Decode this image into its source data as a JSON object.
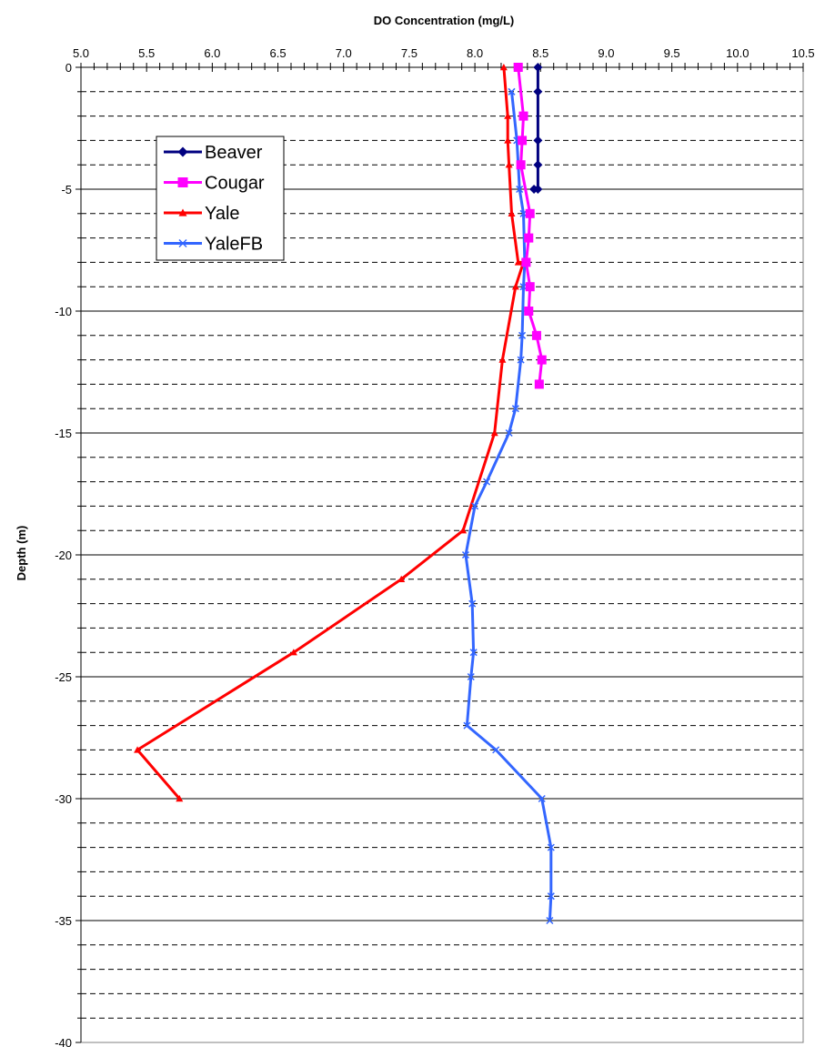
{
  "chart_data": {
    "type": "line",
    "title": "",
    "xlabel": "DO Concentration (mg/L)",
    "ylabel": "Depth (m)",
    "xlim": [
      5.0,
      10.5
    ],
    "ylim": [
      -40,
      0
    ],
    "x_ticks": [
      "5.0",
      "5.5",
      "6.0",
      "6.5",
      "7.0",
      "7.5",
      "8.0",
      "8.5",
      "9.0",
      "9.5",
      "10.0",
      "10.5"
    ],
    "y_ticks": [
      "0",
      "-5",
      "-10",
      "-15",
      "-20",
      "-25",
      "-30",
      "-35",
      "-40"
    ],
    "x_axis_position": "top",
    "grid": "horizontal (solid every 5 m, dashed every 1 m)",
    "legend_position": "upper-left",
    "series": [
      {
        "name": "Beaver",
        "color": "#000080",
        "marker": "diamond",
        "x": [
          8.48,
          8.48,
          8.48,
          8.48,
          8.48,
          8.45
        ],
        "y": [
          0,
          -1,
          -3,
          -4,
          -5,
          -5
        ]
      },
      {
        "name": "Cougar",
        "color": "#ff00ff",
        "marker": "square",
        "x": [
          8.33,
          8.37,
          8.36,
          8.35,
          8.42,
          8.41,
          8.39,
          8.42,
          8.41,
          8.47,
          8.51,
          8.49
        ],
        "y": [
          0,
          -2,
          -3,
          -4,
          -6,
          -7,
          -8,
          -9,
          -10,
          -11,
          -12,
          -13
        ]
      },
      {
        "name": "Yale",
        "color": "#ff0000",
        "marker": "triangle",
        "x": [
          8.22,
          8.25,
          8.25,
          8.26,
          8.28,
          8.33,
          8.37,
          8.31,
          8.21,
          8.15,
          7.91,
          7.44,
          6.62,
          5.43,
          5.75
        ],
        "y": [
          0,
          -2,
          -3,
          -4,
          -6,
          -8,
          -8,
          -9,
          -12,
          -15,
          -19,
          -21,
          -24,
          -28,
          -30
        ]
      },
      {
        "name": "YaleFB",
        "color": "#3366ff",
        "marker": "x",
        "x": [
          8.28,
          8.32,
          8.34,
          8.37,
          8.38,
          8.37,
          8.36,
          8.35,
          8.31,
          8.26,
          8.09,
          8.0,
          7.93,
          7.98,
          7.99,
          7.97,
          7.94,
          8.16,
          8.51,
          8.58,
          8.58,
          8.57
        ],
        "y": [
          -1,
          -3,
          -5,
          -6,
          -8,
          -9,
          -11,
          -12,
          -14,
          -15,
          -17,
          -18,
          -20,
          -22,
          -24,
          -25,
          -27,
          -28,
          -30,
          -32,
          -34,
          -35
        ]
      }
    ]
  }
}
